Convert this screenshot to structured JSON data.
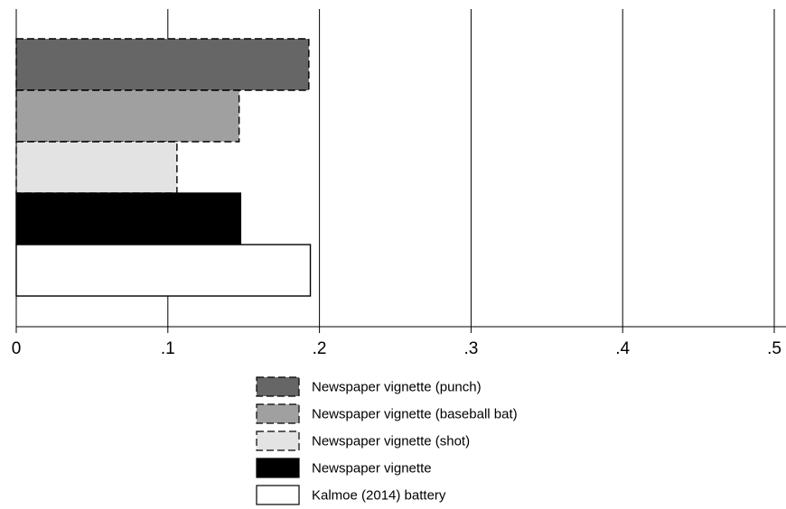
{
  "chart_data": {
    "type": "bar",
    "orientation": "horizontal",
    "xlim": [
      0,
      0.5
    ],
    "x_ticks": [
      0,
      0.1,
      0.2,
      0.3,
      0.4,
      0.5
    ],
    "x_tick_labels": [
      "0",
      ".1",
      ".2",
      ".3",
      ".4",
      ".5"
    ],
    "grid": "vertical",
    "legend_placement": "bottom-center",
    "series": [
      {
        "name": "Newspaper vignette (punch)",
        "value": 0.193,
        "fill": "#666666",
        "border": "dashed"
      },
      {
        "name": "Newspaper vignette (baseball bat)",
        "value": 0.147,
        "fill": "#a0a0a0",
        "border": "dashed"
      },
      {
        "name": "Newspaper vignette (shot)",
        "value": 0.106,
        "fill": "#e3e3e3",
        "border": "dashed"
      },
      {
        "name": "Newspaper vignette",
        "value": 0.148,
        "fill": "#000000",
        "border": "solid"
      },
      {
        "name": "Kalmoe (2014) battery",
        "value": 0.194,
        "fill": "#ffffff",
        "border": "solid"
      }
    ]
  }
}
